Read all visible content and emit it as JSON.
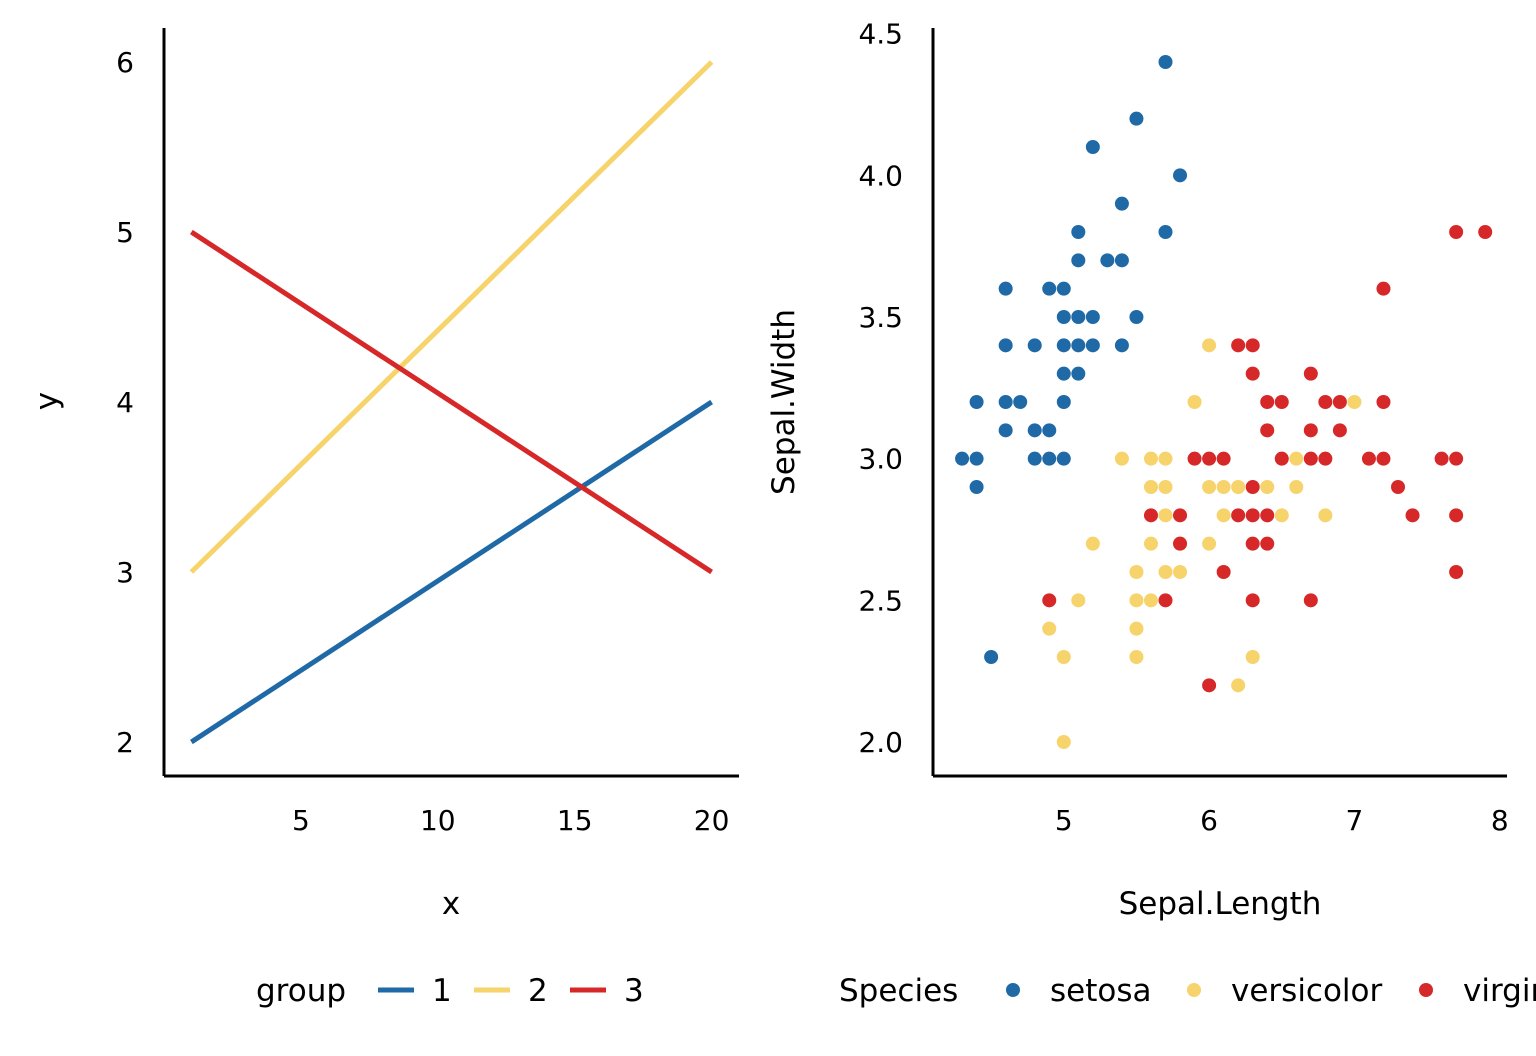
{
  "colors": {
    "c1": "#1f6aa6",
    "c2": "#f6d36b",
    "c3": "#d62828",
    "axis": "#000000"
  },
  "chart_data": [
    {
      "type": "line",
      "xlabel": "x",
      "ylabel": "y",
      "xlim": [
        0,
        21
      ],
      "ylim": [
        1.8,
        6.2
      ],
      "xticks": [
        "5",
        "10",
        "15",
        "20"
      ],
      "yticks": [
        "2",
        "3",
        "4",
        "5",
        "6"
      ],
      "grid": false,
      "legend": {
        "title": "group",
        "position": "bottom",
        "items": [
          "1",
          "2",
          "3"
        ]
      },
      "series": [
        {
          "name": "1",
          "color_key": "c1",
          "x": [
            1,
            20
          ],
          "y": [
            2,
            4
          ]
        },
        {
          "name": "2",
          "color_key": "c2",
          "x": [
            1,
            20
          ],
          "y": [
            3,
            6
          ]
        },
        {
          "name": "3",
          "color_key": "c3",
          "x": [
            1,
            20
          ],
          "y": [
            5,
            3
          ]
        }
      ]
    },
    {
      "type": "scatter",
      "xlabel": "Sepal.Length",
      "ylabel": "Sepal.Width",
      "xlim": [
        4.1,
        8.05
      ],
      "ylim": [
        1.88,
        4.52
      ],
      "xticks": [
        "5",
        "6",
        "7",
        "8"
      ],
      "yticks": [
        "2.0",
        "2.5",
        "3.0",
        "3.5",
        "4.0",
        "4.5"
      ],
      "grid": false,
      "legend": {
        "title": "Species",
        "position": "bottom",
        "items": [
          "setosa",
          "versicolor",
          "virginica"
        ]
      },
      "series": [
        {
          "name": "setosa",
          "color_key": "c1",
          "points": [
            [
              5.7,
              4.4
            ],
            [
              5.5,
              4.2
            ],
            [
              5.2,
              4.1
            ],
            [
              5.8,
              4.0
            ],
            [
              5.4,
              3.9
            ],
            [
              5.1,
              3.8
            ],
            [
              5.7,
              3.8
            ],
            [
              5.1,
              3.7
            ],
            [
              5.3,
              3.7
            ],
            [
              5.4,
              3.7
            ],
            [
              4.6,
              3.6
            ],
            [
              4.9,
              3.6
            ],
            [
              5.0,
              3.6
            ],
            [
              5.0,
              3.5
            ],
            [
              5.1,
              3.5
            ],
            [
              5.2,
              3.5
            ],
            [
              5.5,
              3.5
            ],
            [
              4.6,
              3.4
            ],
            [
              4.8,
              3.4
            ],
            [
              5.0,
              3.4
            ],
            [
              5.1,
              3.4
            ],
            [
              5.2,
              3.4
            ],
            [
              5.4,
              3.4
            ],
            [
              5.0,
              3.3
            ],
            [
              5.1,
              3.3
            ],
            [
              4.4,
              3.2
            ],
            [
              4.6,
              3.2
            ],
            [
              4.7,
              3.2
            ],
            [
              5.0,
              3.2
            ],
            [
              4.6,
              3.1
            ],
            [
              4.8,
              3.1
            ],
            [
              4.9,
              3.1
            ],
            [
              4.3,
              3.0
            ],
            [
              4.4,
              3.0
            ],
            [
              4.8,
              3.0
            ],
            [
              4.9,
              3.0
            ],
            [
              5.0,
              3.0
            ],
            [
              4.4,
              2.9
            ],
            [
              4.5,
              2.3
            ]
          ]
        },
        {
          "name": "versicolor",
          "color_key": "c2",
          "points": [
            [
              6.0,
              3.4
            ],
            [
              5.9,
              3.2
            ],
            [
              7.0,
              3.2
            ],
            [
              5.4,
              3.0
            ],
            [
              5.6,
              3.0
            ],
            [
              5.7,
              3.0
            ],
            [
              6.6,
              3.0
            ],
            [
              5.6,
              2.9
            ],
            [
              5.7,
              2.9
            ],
            [
              6.0,
              2.9
            ],
            [
              6.1,
              2.9
            ],
            [
              6.2,
              2.9
            ],
            [
              6.4,
              2.9
            ],
            [
              6.6,
              2.9
            ],
            [
              5.7,
              2.8
            ],
            [
              6.1,
              2.8
            ],
            [
              6.5,
              2.8
            ],
            [
              6.8,
              2.8
            ],
            [
              5.2,
              2.7
            ],
            [
              5.6,
              2.7
            ],
            [
              5.8,
              2.7
            ],
            [
              6.0,
              2.7
            ],
            [
              5.5,
              2.6
            ],
            [
              5.7,
              2.6
            ],
            [
              5.8,
              2.6
            ],
            [
              5.1,
              2.5
            ],
            [
              5.5,
              2.5
            ],
            [
              5.6,
              2.5
            ],
            [
              4.9,
              2.4
            ],
            [
              5.5,
              2.4
            ],
            [
              5.0,
              2.3
            ],
            [
              5.5,
              2.3
            ],
            [
              6.3,
              2.3
            ],
            [
              6.2,
              2.2
            ],
            [
              5.0,
              2.0
            ]
          ]
        },
        {
          "name": "virginica",
          "color_key": "c3",
          "points": [
            [
              7.7,
              3.8
            ],
            [
              7.9,
              3.8
            ],
            [
              7.2,
              3.6
            ],
            [
              6.2,
              3.4
            ],
            [
              6.3,
              3.4
            ],
            [
              6.3,
              3.3
            ],
            [
              6.7,
              3.3
            ],
            [
              6.4,
              3.2
            ],
            [
              6.5,
              3.2
            ],
            [
              6.8,
              3.2
            ],
            [
              6.9,
              3.2
            ],
            [
              7.2,
              3.2
            ],
            [
              6.4,
              3.1
            ],
            [
              6.7,
              3.1
            ],
            [
              6.9,
              3.1
            ],
            [
              5.9,
              3.0
            ],
            [
              6.0,
              3.0
            ],
            [
              6.1,
              3.0
            ],
            [
              6.5,
              3.0
            ],
            [
              6.7,
              3.0
            ],
            [
              6.8,
              3.0
            ],
            [
              7.1,
              3.0
            ],
            [
              7.2,
              3.0
            ],
            [
              7.6,
              3.0
            ],
            [
              7.7,
              3.0
            ],
            [
              6.3,
              2.9
            ],
            [
              7.3,
              2.9
            ],
            [
              5.6,
              2.8
            ],
            [
              5.8,
              2.8
            ],
            [
              6.2,
              2.8
            ],
            [
              6.3,
              2.8
            ],
            [
              6.4,
              2.8
            ],
            [
              7.4,
              2.8
            ],
            [
              7.7,
              2.8
            ],
            [
              5.8,
              2.7
            ],
            [
              6.3,
              2.7
            ],
            [
              6.4,
              2.7
            ],
            [
              6.1,
              2.6
            ],
            [
              7.7,
              2.6
            ],
            [
              4.9,
              2.5
            ],
            [
              5.7,
              2.5
            ],
            [
              6.3,
              2.5
            ],
            [
              6.7,
              2.5
            ],
            [
              6.0,
              2.2
            ]
          ]
        }
      ]
    }
  ]
}
